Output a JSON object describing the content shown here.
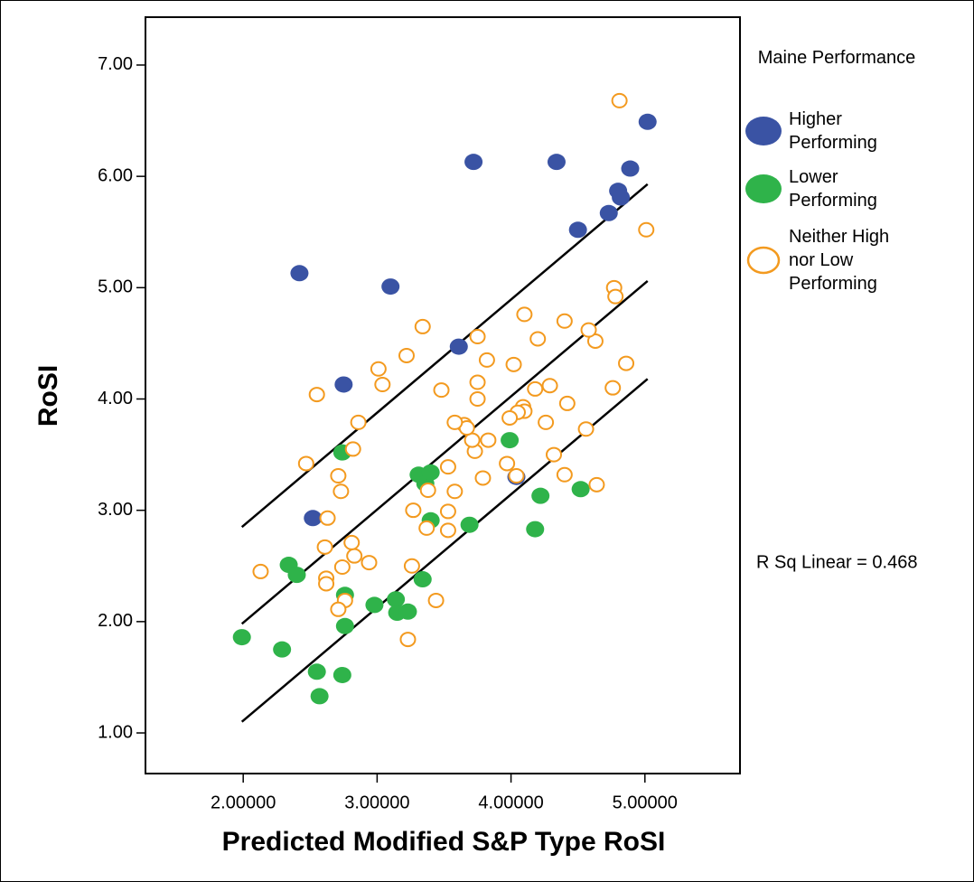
{
  "chart_data": {
    "type": "scatter",
    "x_label": "Predicted Modified S&P Type RoSI",
    "y_label": "RoSI",
    "legend_title": "Maine Performance",
    "annotation": "R Sq Linear = 0.468",
    "xlim": [
      1.27,
      5.71
    ],
    "ylim": [
      0.635,
      7.43
    ],
    "xticks": [
      {
        "value": 2,
        "label": "2.00000"
      },
      {
        "value": 3,
        "label": "3.00000"
      },
      {
        "value": 4,
        "label": "4.00000"
      },
      {
        "value": 5,
        "label": "5.00000"
      }
    ],
    "yticks": [
      {
        "value": 1,
        "label": "1.00"
      },
      {
        "value": 2,
        "label": "2.00"
      },
      {
        "value": 3,
        "label": "3.00"
      },
      {
        "value": 4,
        "label": "4.00"
      },
      {
        "value": 5,
        "label": "5.00"
      },
      {
        "value": 6,
        "label": "6.00"
      },
      {
        "value": 7,
        "label": "7.00"
      }
    ],
    "series": [
      {
        "name": "Higher Performing",
        "color": "#3a53a4",
        "marker": "filled",
        "x": [
          2.42,
          3.1,
          2.75,
          2.52,
          3.72,
          3.61,
          4.34,
          4.5,
          4.73,
          4.8,
          4.82,
          4.89,
          5.02,
          4.04
        ],
        "values": [
          5.13,
          5.01,
          4.13,
          2.93,
          6.13,
          4.47,
          6.13,
          5.52,
          5.67,
          5.87,
          5.81,
          6.07,
          6.49,
          3.3
        ]
      },
      {
        "name": "Lower Performing",
        "color": "#2fb34a",
        "marker": "filled",
        "x": [
          1.99,
          2.29,
          2.34,
          2.4,
          2.55,
          2.57,
          2.74,
          2.76,
          2.76,
          2.74,
          2.98,
          3.14,
          3.15,
          3.23,
          3.34,
          3.31,
          3.36,
          3.4,
          3.4,
          3.69,
          3.99,
          4.18,
          4.22,
          4.52
        ],
        "values": [
          1.86,
          1.75,
          2.51,
          2.42,
          1.55,
          1.33,
          1.52,
          2.24,
          1.96,
          3.52,
          2.15,
          2.2,
          2.08,
          2.09,
          2.38,
          3.32,
          3.24,
          3.34,
          2.91,
          2.87,
          3.63,
          2.83,
          3.13,
          3.19
        ]
      },
      {
        "name": "Neither High nor Low Performing",
        "color": "#f39a1f",
        "marker": "open",
        "x": [
          4.81,
          5.01,
          4.77,
          4.78,
          4.86,
          4.76,
          4.56,
          4.63,
          4.58,
          4.4,
          4.64,
          4.42,
          4.4,
          4.32,
          4.29,
          4.26,
          4.2,
          4.18,
          4.1,
          4.09,
          4.1,
          4.05,
          4.02,
          3.99,
          3.97,
          4.04,
          3.82,
          3.83,
          3.79,
          3.75,
          3.75,
          3.75,
          3.73,
          3.71,
          3.65,
          3.67,
          3.58,
          3.58,
          3.53,
          3.53,
          3.53,
          3.48,
          3.34,
          3.38,
          3.37,
          3.44,
          3.27,
          3.26,
          3.23,
          3.22,
          3.04,
          3.01,
          2.94,
          2.86,
          2.82,
          2.83,
          2.81,
          2.76,
          2.74,
          2.71,
          2.73,
          2.71,
          2.63,
          2.62,
          2.62,
          2.61,
          2.55,
          2.47,
          2.13
        ],
        "values": [
          6.68,
          5.52,
          5.0,
          4.92,
          4.32,
          4.1,
          3.73,
          4.52,
          4.62,
          4.7,
          3.23,
          3.96,
          3.32,
          3.5,
          4.12,
          3.79,
          4.54,
          4.09,
          4.76,
          3.93,
          3.89,
          3.88,
          4.31,
          3.83,
          3.42,
          3.31,
          4.35,
          3.63,
          3.29,
          4.56,
          4.15,
          4.0,
          3.53,
          3.63,
          3.77,
          3.74,
          3.79,
          3.17,
          3.39,
          2.99,
          2.82,
          4.08,
          4.65,
          3.18,
          2.84,
          2.19,
          3.0,
          2.5,
          1.84,
          4.39,
          4.13,
          4.27,
          2.53,
          3.79,
          3.55,
          2.59,
          2.71,
          2.19,
          2.49,
          2.11,
          3.17,
          3.31,
          2.93,
          2.39,
          2.34,
          2.67,
          4.04,
          3.42,
          2.45
        ]
      }
    ],
    "fit_lines": [
      {
        "x": [
          1.99,
          5.02
        ],
        "values": [
          2.85,
          5.93
        ]
      },
      {
        "x": [
          1.99,
          5.02
        ],
        "values": [
          1.98,
          5.06
        ]
      },
      {
        "x": [
          1.99,
          5.02
        ],
        "values": [
          1.1,
          4.18
        ]
      }
    ]
  }
}
